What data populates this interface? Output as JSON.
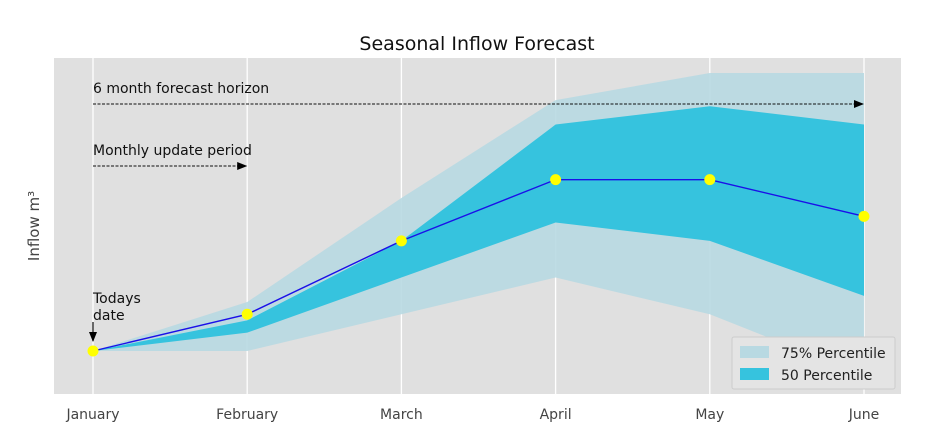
{
  "chart_data": {
    "type": "line",
    "title": "Seasonal Inflow Forecast",
    "xlabel": "",
    "ylabel": "Inflow m³",
    "categories": [
      "January",
      "February",
      "March",
      "April",
      "May",
      "June"
    ],
    "ylim": [
      0,
      100
    ],
    "grid": true,
    "y_tick_labels_shown": false,
    "series": [
      {
        "values": [
          14,
          26,
          50,
          70,
          70,
          58
        ],
        "color": "#1a10e8",
        "marker_color": "#ffff00"
      }
    ],
    "bands": [
      {
        "name": "75% Percentile",
        "color": "#b8d9e2",
        "lower": [
          14,
          14,
          26,
          38,
          26,
          6
        ],
        "upper": [
          14,
          30,
          64,
          96,
          108,
          108
        ]
      },
      {
        "name": "50 Percentile",
        "color": "#36c3de",
        "lower": [
          14,
          20,
          38,
          56,
          50,
          32
        ],
        "upper": [
          14,
          24,
          50,
          88,
          94,
          88
        ]
      }
    ],
    "annotations": [
      {
        "text": "6 month forecast horizon",
        "from": "January",
        "to": "June"
      },
      {
        "text": "Monthly update period",
        "from": "January",
        "to": "February"
      },
      {
        "text_lines": [
          "Todays",
          "date"
        ],
        "at": "January"
      }
    ],
    "legend_position": "bottom-right",
    "colors": {
      "plot_background": "#e0e0e0",
      "grid": "#ffffff"
    }
  }
}
